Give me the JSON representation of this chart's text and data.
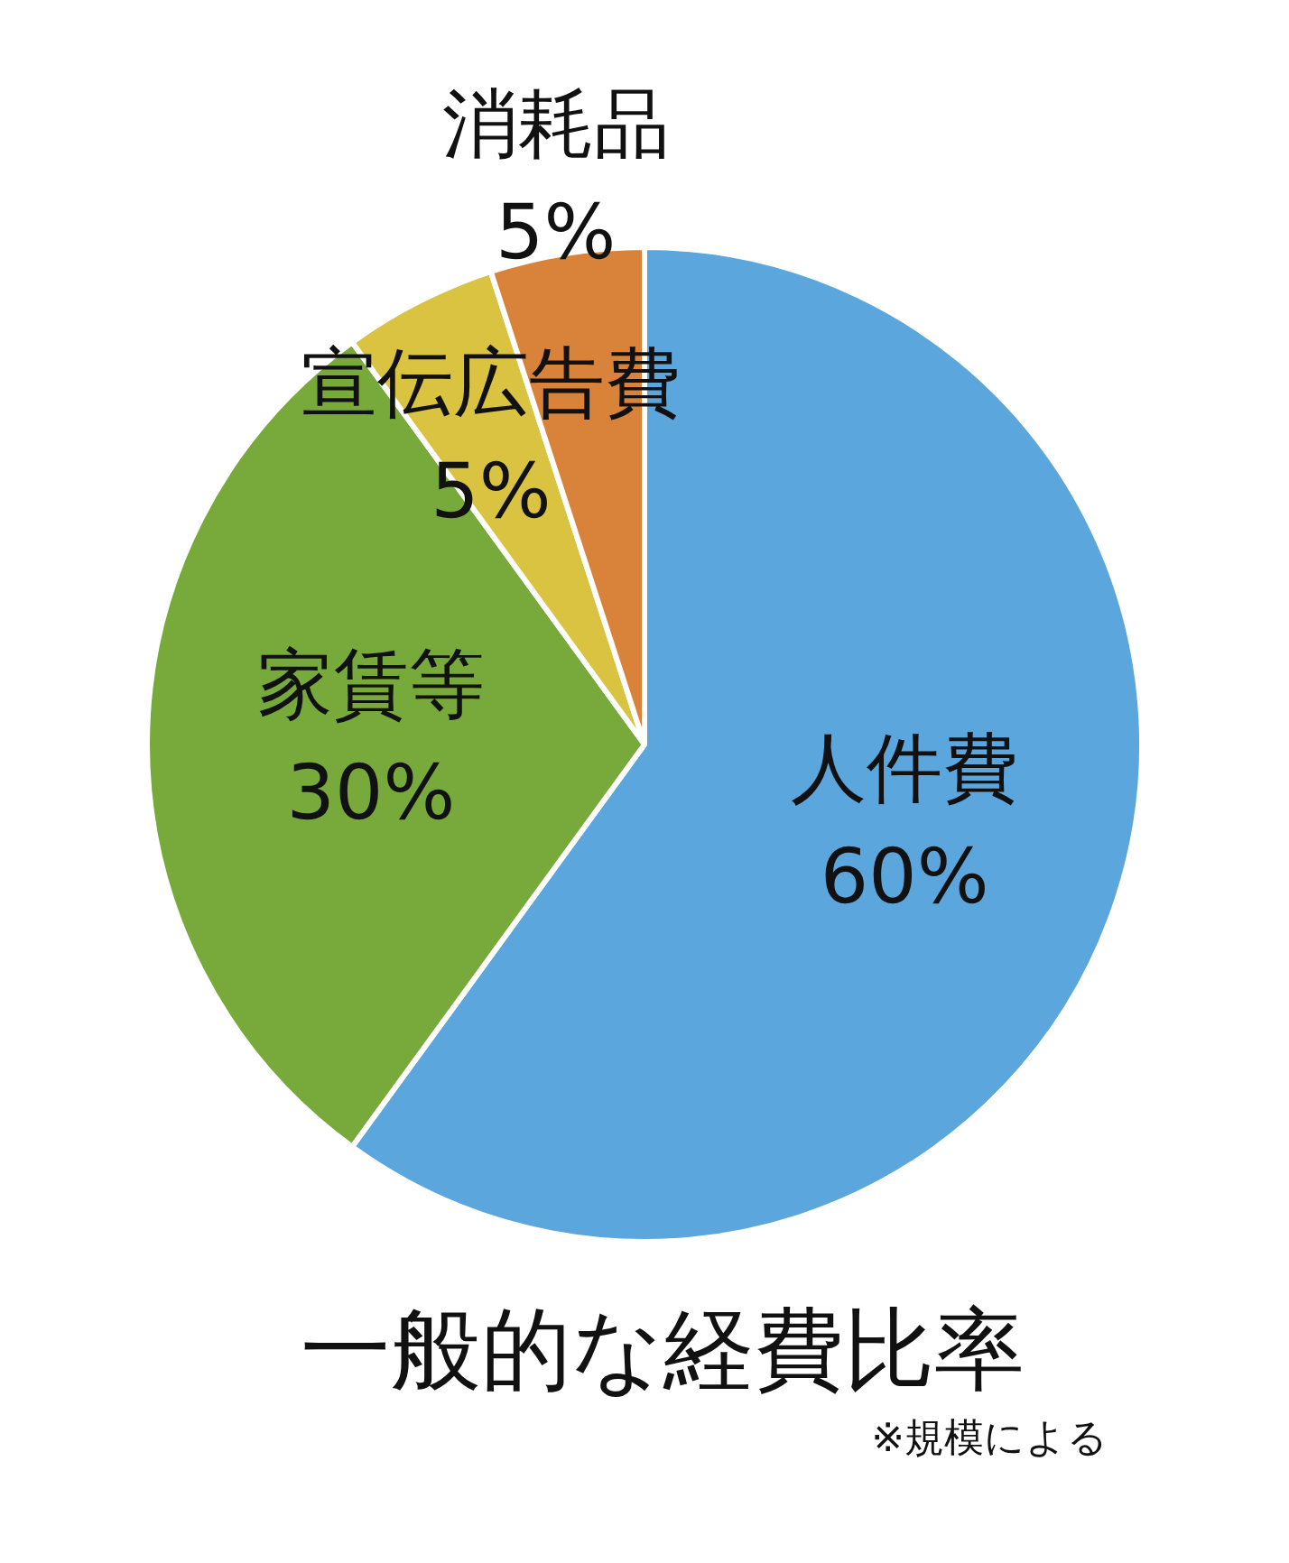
{
  "chart_data": {
    "type": "pie",
    "title": "一般的な経費比率",
    "annotations": [
      "※規模による"
    ],
    "categories": [
      "人件費",
      "家賃等",
      "宣伝広告費",
      "消耗品"
    ],
    "values": [
      60,
      30,
      5,
      5
    ],
    "value_labels": [
      "60%",
      "30%",
      "5%",
      "5%"
    ],
    "colors": [
      "#5aa6dd",
      "#78a93b",
      "#d9c340",
      "#d9823a"
    ],
    "legend": false
  }
}
